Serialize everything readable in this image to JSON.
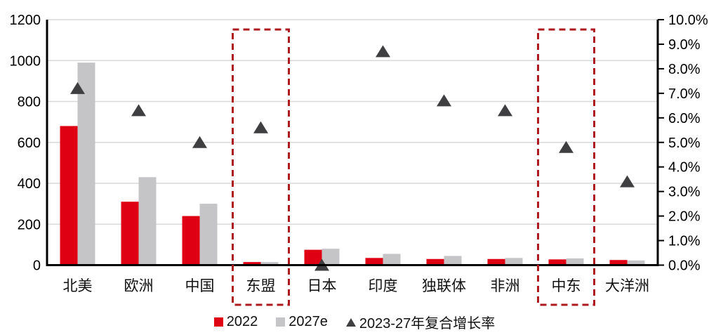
{
  "chart_data": {
    "type": "bar",
    "subtype": "combo-bar-scatter-dual-axis",
    "title": "",
    "categories": [
      "北美",
      "欧洲",
      "中国",
      "东盟",
      "日本",
      "印度",
      "独联体",
      "非洲",
      "中东",
      "大洋洲"
    ],
    "series": [
      {
        "name": "2022",
        "type": "bar",
        "axis": "left",
        "color": "#e00013",
        "values": [
          680,
          310,
          240,
          15,
          75,
          35,
          30,
          30,
          28,
          25
        ]
      },
      {
        "name": "2027e",
        "type": "bar",
        "axis": "left",
        "color": "#c5c5c7",
        "values": [
          990,
          430,
          300,
          15,
          80,
          55,
          45,
          35,
          33,
          23
        ]
      },
      {
        "name": "2023-27年复合增长率",
        "type": "scatter-triangle",
        "axis": "right",
        "color": "#3f3f41",
        "values": [
          7.2,
          6.3,
          5.0,
          5.6,
          0.0,
          8.7,
          6.7,
          6.3,
          4.8,
          3.4
        ]
      }
    ],
    "left_axis": {
      "min": 0,
      "max": 1200,
      "step": 200,
      "tick_labels": [
        "0",
        "200",
        "400",
        "600",
        "800",
        "1000",
        "1200"
      ]
    },
    "right_axis": {
      "min": 0,
      "max": 10,
      "step": 1,
      "tick_labels": [
        "0.0%",
        "1.0%",
        "2.0%",
        "3.0%",
        "4.0%",
        "5.0%",
        "6.0%",
        "7.0%",
        "8.0%",
        "9.0%",
        "10.0%"
      ]
    },
    "grid": true,
    "gridline_color": "#d9d9d9",
    "axis_line_color": "#000000",
    "highlighted_categories": [
      "东盟",
      "中东"
    ],
    "highlight_box_color": "#ad1a1f",
    "legend_position": "bottom",
    "legend_entries": [
      "2022",
      "2027e",
      "2023-27年复合增长率"
    ]
  }
}
